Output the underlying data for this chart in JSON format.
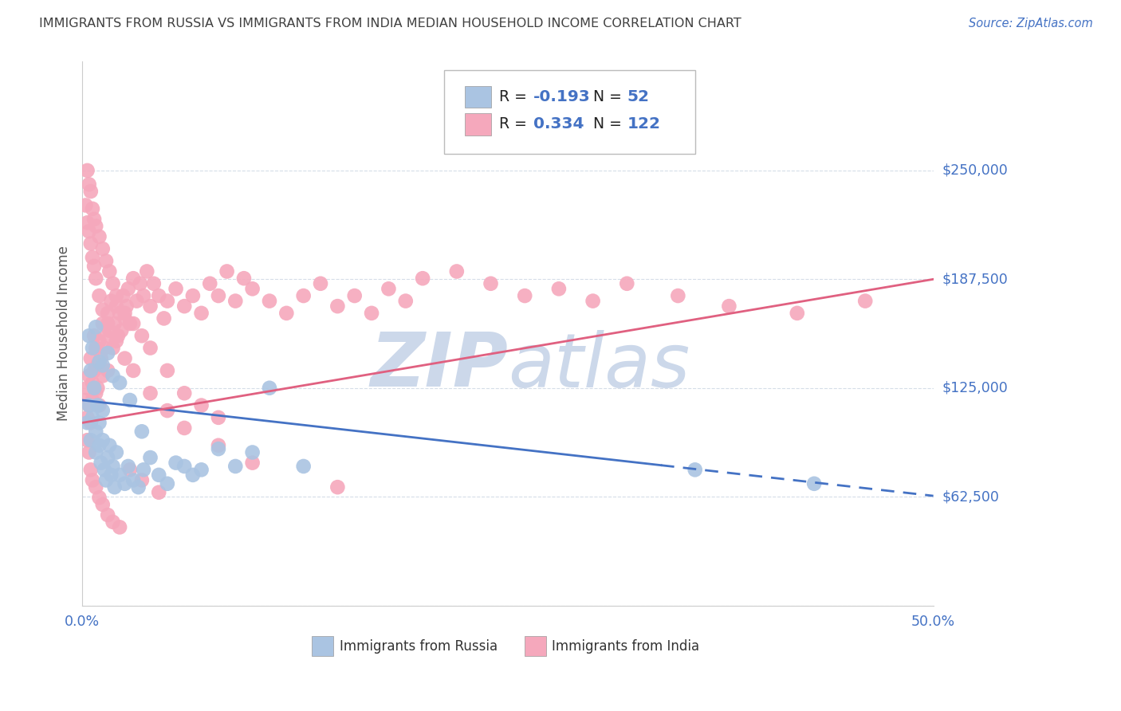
{
  "title": "IMMIGRANTS FROM RUSSIA VS IMMIGRANTS FROM INDIA MEDIAN HOUSEHOLD INCOME CORRELATION CHART",
  "source": "Source: ZipAtlas.com",
  "ylabel": "Median Household Income",
  "xlim": [
    0.0,
    0.5
  ],
  "ylim": [
    0,
    312500
  ],
  "yticks": [
    0,
    62500,
    125000,
    187500,
    250000
  ],
  "ytick_labels": [
    "",
    "$62,500",
    "$125,000",
    "$187,500",
    "$250,000"
  ],
  "russia_R": -0.193,
  "russia_N": 52,
  "india_R": 0.334,
  "india_N": 122,
  "russia_color": "#aac4e2",
  "india_color": "#f5a8bc",
  "russia_line_color": "#4472c4",
  "india_line_color": "#e06080",
  "watermark_color": "#ccd8ea",
  "title_color": "#404040",
  "axis_label_color": "#4472c4",
  "grid_color": "#d5dde8",
  "background_color": "#ffffff"
}
